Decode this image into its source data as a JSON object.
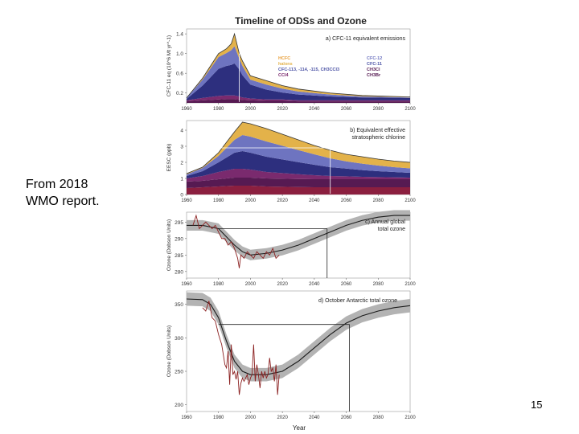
{
  "slide": {
    "caption_line1": "From 2018",
    "caption_line2": "WMO report.",
    "page_number": "15"
  },
  "figure": {
    "title": "Timeline of ODSs and Ozone",
    "xlabel": "Year"
  },
  "colors": {
    "background": "#ffffff",
    "hcfc": "#e8a03c",
    "halons": "#e3b24a",
    "cfc12": "#6e74c0",
    "cfc11": "#4e55a6",
    "cfc113": "#2d2f7e",
    "ccl4": "#7a2a6e",
    "ch3ccl3": "#561a52",
    "ch3br": "#8b1f3f",
    "observation": "#8b2020",
    "model_band": "#b3b3b3",
    "model_line": "#1a1a1a"
  },
  "chart_data": [
    {
      "id": "a",
      "type": "area",
      "panel_label": "a) CFC-11 equivalent emissions",
      "ylabel": "CFC-11 eq (10^6 Mt yr^-1)",
      "ylim": [
        0,
        1.5
      ],
      "yticks": [
        "0.2",
        "0.6",
        "1.0",
        "1.4"
      ],
      "ytick_values": [
        0.2,
        0.6,
        1.0,
        1.4
      ],
      "xlim": [
        1960,
        2100
      ],
      "xticks": [
        "1960",
        "1980",
        "2000",
        "2020",
        "2040",
        "2060",
        "2080",
        "2100"
      ],
      "x": [
        1960,
        1970,
        1975,
        1980,
        1985,
        1988,
        1990,
        1993,
        1995,
        2000,
        2010,
        2020,
        2030,
        2050,
        2070,
        2100
      ],
      "legend_entries": [
        "HCFC",
        "halons",
        "CFC-113, -114, -115, CH3CCl3",
        "CCl4",
        "CFC-12",
        "CFC-11",
        "CH3Cl",
        "CH3Br"
      ],
      "totals": [
        0.1,
        0.5,
        0.75,
        1.0,
        1.1,
        1.2,
        1.4,
        1.0,
        0.85,
        0.55,
        0.45,
        0.35,
        0.28,
        0.2,
        0.15,
        0.12
      ],
      "series": [
        {
          "name": "CH3Cl",
          "color_key": "ch3ccl3",
          "values": [
            0.03,
            0.05,
            0.06,
            0.07,
            0.08,
            0.08,
            0.08,
            0.07,
            0.06,
            0.05,
            0.04,
            0.04,
            0.03,
            0.03,
            0.03,
            0.03
          ]
        },
        {
          "name": "CCl4",
          "color_key": "ccl4",
          "values": [
            0.02,
            0.05,
            0.06,
            0.07,
            0.07,
            0.07,
            0.07,
            0.06,
            0.05,
            0.04,
            0.03,
            0.03,
            0.02,
            0.02,
            0.02,
            0.02
          ]
        },
        {
          "name": "CFC-11",
          "color_key": "cfc113",
          "values": [
            0.03,
            0.25,
            0.4,
            0.55,
            0.6,
            0.62,
            0.65,
            0.55,
            0.45,
            0.28,
            0.2,
            0.14,
            0.12,
            0.08,
            0.06,
            0.05
          ]
        },
        {
          "name": "CFC-12",
          "color_key": "cfc12",
          "values": [
            0.02,
            0.12,
            0.18,
            0.24,
            0.26,
            0.3,
            0.35,
            0.22,
            0.19,
            0.1,
            0.1,
            0.08,
            0.06,
            0.04,
            0.02,
            0.01
          ]
        },
        {
          "name": "halons",
          "color_key": "halons",
          "values": [
            0.0,
            0.03,
            0.05,
            0.07,
            0.09,
            0.13,
            0.25,
            0.1,
            0.1,
            0.08,
            0.08,
            0.06,
            0.05,
            0.03,
            0.02,
            0.01
          ]
        }
      ],
      "arrow_year": 1993
    },
    {
      "id": "b",
      "type": "area",
      "panel_label": "b) Equivalent effective",
      "panel_label2": "stratospheric chlorine",
      "ylabel": "EESC (ppb)",
      "ylim": [
        0,
        4.6
      ],
      "yticks": [
        "0",
        "1",
        "2",
        "3",
        "4"
      ],
      "ytick_values": [
        0,
        1,
        2,
        3,
        4
      ],
      "xlim": [
        1960,
        2100
      ],
      "xticks": [
        "1960",
        "1980",
        "2000",
        "2020",
        "2040",
        "2060",
        "2080",
        "2100"
      ],
      "x": [
        1960,
        1970,
        1980,
        1990,
        1995,
        2000,
        2010,
        2020,
        2030,
        2040,
        2050,
        2060,
        2070,
        2080,
        2090,
        2100
      ],
      "totals": [
        1.3,
        1.7,
        2.6,
        3.9,
        4.5,
        4.4,
        4.1,
        3.75,
        3.4,
        3.05,
        2.75,
        2.5,
        2.35,
        2.2,
        2.08,
        2.0
      ],
      "series": [
        {
          "name": "CH3Br",
          "color_key": "ch3br",
          "values": [
            0.4,
            0.45,
            0.5,
            0.55,
            0.55,
            0.55,
            0.5,
            0.48,
            0.46,
            0.45,
            0.45,
            0.45,
            0.45,
            0.45,
            0.45,
            0.45
          ]
        },
        {
          "name": "CH3Cl",
          "color_key": "ch3ccl3",
          "values": [
            0.4,
            0.4,
            0.45,
            0.5,
            0.5,
            0.5,
            0.5,
            0.5,
            0.5,
            0.5,
            0.5,
            0.5,
            0.5,
            0.5,
            0.5,
            0.5
          ]
        },
        {
          "name": "CCl4",
          "color_key": "ccl4",
          "values": [
            0.2,
            0.3,
            0.45,
            0.55,
            0.55,
            0.5,
            0.4,
            0.35,
            0.3,
            0.25,
            0.2,
            0.18,
            0.15,
            0.13,
            0.12,
            0.1
          ]
        },
        {
          "name": "CFC-11",
          "color_key": "cfc113",
          "values": [
            0.15,
            0.3,
            0.6,
            1.0,
            1.1,
            1.05,
            0.95,
            0.85,
            0.75,
            0.65,
            0.55,
            0.48,
            0.42,
            0.37,
            0.33,
            0.3
          ]
        },
        {
          "name": "CFC-12",
          "color_key": "cfc12",
          "values": [
            0.1,
            0.2,
            0.4,
            0.8,
            1.0,
            1.0,
            0.95,
            0.85,
            0.75,
            0.65,
            0.55,
            0.45,
            0.4,
            0.35,
            0.3,
            0.28
          ]
        },
        {
          "name": "halons",
          "color_key": "halons",
          "values": [
            0.05,
            0.05,
            0.2,
            0.5,
            0.8,
            0.8,
            0.8,
            0.72,
            0.64,
            0.55,
            0.5,
            0.44,
            0.43,
            0.4,
            0.38,
            0.37
          ]
        }
      ],
      "reference_level": 2.9,
      "reference_years": [
        1980,
        2050
      ]
    },
    {
      "id": "c",
      "type": "line",
      "panel_label": "c) Annual global",
      "panel_label2": "total ozone",
      "ylabel": "Ozone (Dobson Units)",
      "ylim": [
        278,
        298
      ],
      "yticks": [
        "280",
        "285",
        "290",
        "295"
      ],
      "ytick_values": [
        280,
        285,
        290,
        295
      ],
      "xlim": [
        1960,
        2100
      ],
      "xticks": [
        "1960",
        "1980",
        "2000",
        "2020",
        "2040",
        "2060",
        "2080",
        "2100"
      ],
      "model_x": [
        1960,
        1970,
        1980,
        1990,
        1995,
        2000,
        2010,
        2020,
        2030,
        2040,
        2050,
        2060,
        2070,
        2080,
        2090,
        2100
      ],
      "model_y": [
        294,
        294,
        293,
        288,
        286,
        285,
        285.5,
        286.5,
        288,
        290,
        292,
        294,
        295.5,
        296.5,
        297,
        297
      ],
      "model_band_halfwidth": 1.6,
      "obs_x": [
        1964,
        1966,
        1968,
        1970,
        1972,
        1974,
        1976,
        1978,
        1980,
        1982,
        1984,
        1986,
        1988,
        1990,
        1992,
        1993,
        1994,
        1996,
        1998,
        2000,
        2002,
        2004,
        2006,
        2008,
        2010,
        2012,
        2014,
        2016,
        2018
      ],
      "obs_y": [
        294,
        297,
        293,
        294,
        295,
        294,
        293,
        294,
        292,
        290,
        290,
        288,
        289,
        287,
        284,
        281,
        285,
        284,
        286,
        285,
        284,
        286,
        285,
        284,
        286,
        285,
        287,
        284,
        285
      ],
      "reference_level": 293,
      "reference_years": [
        1980,
        2048
      ]
    },
    {
      "id": "d",
      "type": "line",
      "panel_label": "d) October Antarctic total ozone",
      "ylabel": "Ozone (Dobson Units)",
      "ylim": [
        190,
        370
      ],
      "yticks": [
        "200",
        "250",
        "300",
        "350"
      ],
      "ytick_values": [
        200,
        250,
        300,
        350
      ],
      "xlim": [
        1960,
        2100
      ],
      "xticks": [
        "1960",
        "1980",
        "2000",
        "2020",
        "2040",
        "2060",
        "2080",
        "2100"
      ],
      "model_x": [
        1960,
        1970,
        1975,
        1980,
        1985,
        1990,
        1995,
        2000,
        2010,
        2020,
        2030,
        2040,
        2050,
        2060,
        2070,
        2080,
        2090,
        2100
      ],
      "model_y": [
        358,
        357,
        350,
        330,
        295,
        265,
        250,
        245,
        245,
        250,
        265,
        285,
        305,
        322,
        333,
        340,
        345,
        348
      ],
      "model_band_halfwidth": 10,
      "obs_x": [
        1970,
        1972,
        1974,
        1976,
        1978,
        1980,
        1982,
        1984,
        1985,
        1986,
        1987,
        1988,
        1989,
        1990,
        1991,
        1992,
        1993,
        1994,
        1995,
        1996,
        1997,
        1998,
        1999,
        2000,
        2001,
        2002,
        2003,
        2004,
        2005,
        2006,
        2007,
        2008,
        2009,
        2010,
        2011,
        2012,
        2013,
        2014,
        2015,
        2016,
        2017,
        2018
      ],
      "obs_y": [
        345,
        340,
        355,
        330,
        325,
        305,
        290,
        260,
        255,
        280,
        230,
        290,
        245,
        250,
        238,
        250,
        215,
        232,
        240,
        235,
        240,
        245,
        230,
        240,
        245,
        290,
        235,
        260,
        245,
        225,
        250,
        240,
        250,
        240,
        245,
        270,
        250,
        255,
        235,
        260,
        215,
        245
      ],
      "reference_level": 320,
      "reference_years": [
        1980,
        2062
      ]
    }
  ]
}
